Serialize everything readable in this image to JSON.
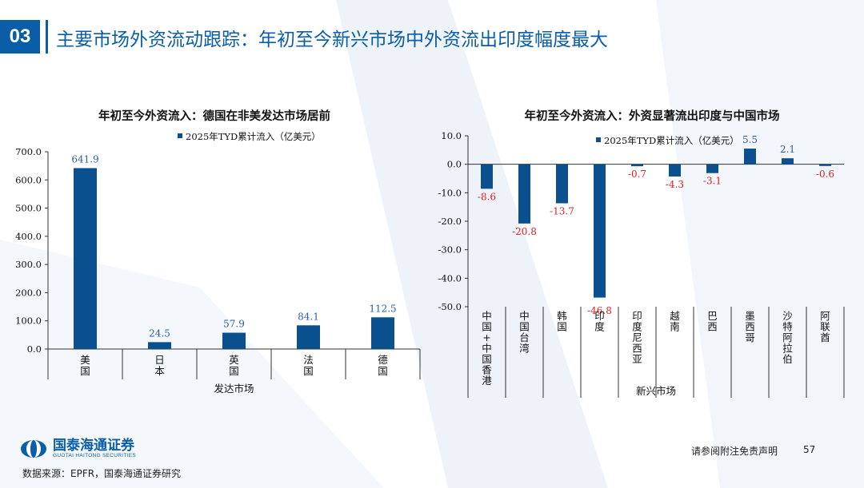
{
  "header": {
    "number": "03",
    "title": "主要市场外资流动跟踪：年初至今新兴市场中外资流出印度幅度最大"
  },
  "footer": {
    "logo_name": "国泰海通证券",
    "logo_en": "GUOTAI HAITONG SECURITIES",
    "source": "数据来源：EPFR，国泰海通证券研究",
    "disclaimer": "请参阅附注免责声明",
    "page": "57"
  },
  "colors": {
    "bar": "#0a4f8e",
    "negative_label": "#e02020",
    "positive_label": "#2a5f9e",
    "accent": "#0a5ea8"
  },
  "chart_data": [
    {
      "type": "bar",
      "title": "年初至今外资流入：德国在非美发达市场居前",
      "legend": "2025年TYD累计流入（亿美元）",
      "legend_position": "top",
      "xlabel": "发达市场",
      "ylabel": "",
      "categories": [
        "美国",
        "日本",
        "英国",
        "法国",
        "德国"
      ],
      "series": [
        {
          "name": "2025年TYD累计流入（亿美元）",
          "values": [
            641.9,
            24.5,
            57.9,
            84.1,
            112.5
          ]
        }
      ],
      "value_labels": [
        "641.9",
        "24.5",
        "57.9",
        "84.1",
        "112.5"
      ],
      "ylim": [
        0,
        700
      ],
      "yticks": [
        "0.0",
        "100.0",
        "200.0",
        "300.0",
        "400.0",
        "500.0",
        "600.0",
        "700.0"
      ],
      "grid": false
    },
    {
      "type": "bar",
      "title": "年初至今外资流入：外资显著流出印度与中国市场",
      "legend": "2025年TYD累计流入（亿美元）",
      "legend_position": "top-right",
      "xlabel": "新兴市场",
      "ylabel": "",
      "categories": [
        "中国+中国香港",
        "中国台湾",
        "韩国",
        "印度",
        "印度尼西亚",
        "越南",
        "巴西",
        "墨西哥",
        "沙特阿拉伯",
        "阿联酋"
      ],
      "series": [
        {
          "name": "2025年TYD累计流入（亿美元）",
          "values": [
            -8.6,
            -20.8,
            -13.7,
            -46.8,
            -0.7,
            -4.3,
            -3.1,
            5.5,
            2.1,
            -0.6
          ]
        }
      ],
      "value_labels": [
        "-8.6",
        "-20.8",
        "-13.7",
        "-46.8",
        "-0.7",
        "-4.3",
        "-3.1",
        "5.5",
        "2.1",
        "-0.6"
      ],
      "ylim": [
        -50,
        10
      ],
      "yticks": [
        "-50.0",
        "-40.0",
        "-30.0",
        "-20.0",
        "-10.0",
        "0.0",
        "10.0"
      ],
      "grid": false
    }
  ]
}
